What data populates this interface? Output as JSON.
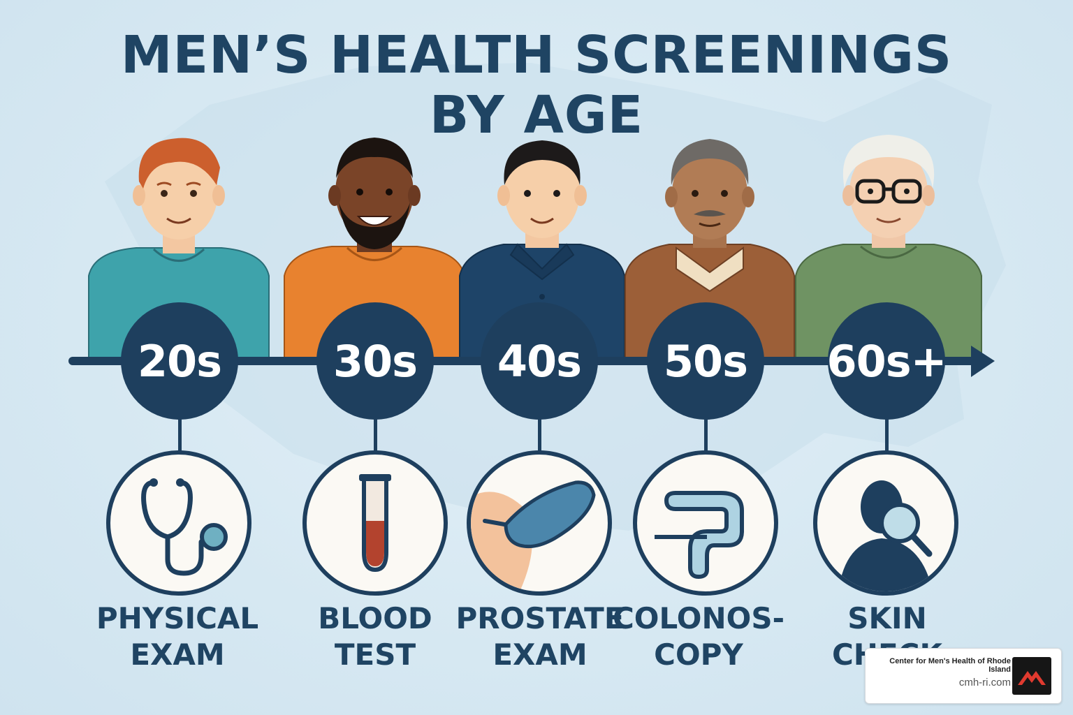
{
  "title": {
    "line1": "MEN’S HEALTH SCREENINGS",
    "line2": "BY AGE"
  },
  "stages": [
    {
      "age": "20s",
      "label_line1": "PHYSICAL",
      "label_line2": "EXAM",
      "icon": "stethoscope-icon"
    },
    {
      "age": "30s",
      "label_line1": "BLOOD",
      "label_line2": "TEST",
      "icon": "test-tube-icon"
    },
    {
      "age": "40s",
      "label_line1": "PROSTATE",
      "label_line2": "EXAM",
      "icon": "gloved-hand-icon"
    },
    {
      "age": "50s",
      "label_line1": "COLONOS-",
      "label_line2": "COPY",
      "icon": "colon-icon"
    },
    {
      "age": "60s+",
      "label_line1": "SKIN",
      "label_line2": "CHECK",
      "icon": "magnifier-person-icon"
    }
  ],
  "brand": {
    "name": "Center for Men's Health of Rhode Island",
    "url": "cmh-ri.com",
    "logo": "mountain-logo-icon"
  },
  "colors": {
    "navy": "#1e3f5e",
    "title": "#1f4463",
    "background": "#d6e8f2",
    "circle_fill": "#fbf9f4"
  }
}
